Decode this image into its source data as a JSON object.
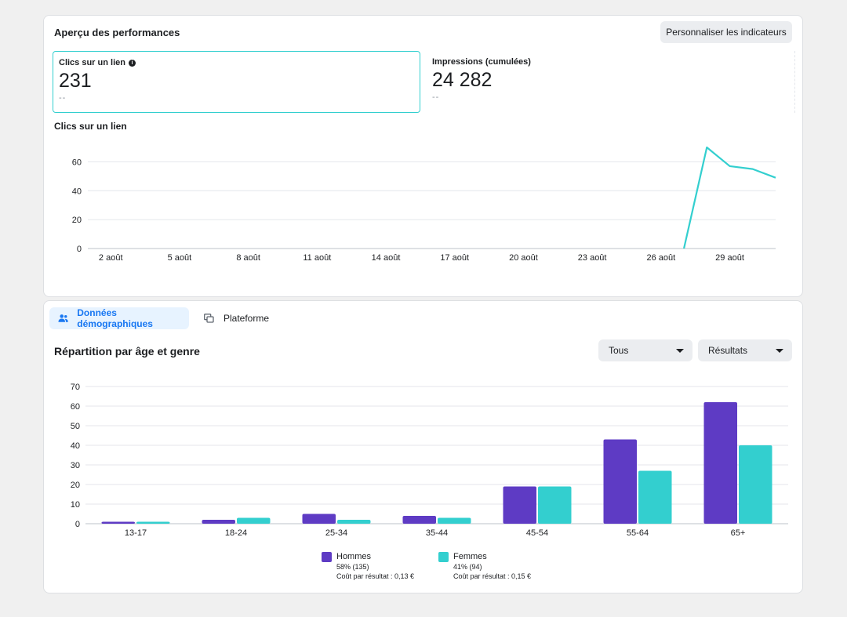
{
  "performance": {
    "title": "Aperçu des performances",
    "customize_button": "Personnaliser les indicateurs",
    "metrics": [
      {
        "label": "Clics sur un lien",
        "value": "231",
        "sub": "--"
      },
      {
        "label": "Impressions (cumulées)",
        "value": "24 282",
        "sub": "--"
      }
    ],
    "chart_title": "Clics sur un lien"
  },
  "demographics": {
    "tabs": [
      {
        "label": "Données démographiques",
        "active": true
      },
      {
        "label": "Plateforme",
        "active": false
      }
    ],
    "title": "Répartition par âge et genre",
    "filter_all": "Tous",
    "filter_results": "Résultats",
    "legend": [
      {
        "name": "Hommes",
        "share": "58% (135)",
        "cost": "Coût par résultat : 0,13 €",
        "color": "#5e3bc4"
      },
      {
        "name": "Femmes",
        "share": "41% (94)",
        "cost": "Coût par résultat : 0,15 €",
        "color": "#33cfcf"
      }
    ]
  },
  "chart_data": [
    {
      "type": "line",
      "title": "Clics sur un lien",
      "x_ticks": [
        "2 août",
        "5 août",
        "8 août",
        "11 août",
        "14 août",
        "17 août",
        "20 août",
        "23 août",
        "26 août",
        "29 août"
      ],
      "x_range": [
        "1 août",
        "31 août"
      ],
      "y_ticks": [
        0,
        20,
        40,
        60
      ],
      "ylim": [
        0,
        70
      ],
      "grid": true,
      "series": [
        {
          "color": "#33cfcf",
          "points": [
            {
              "x": "27 août",
              "y": 0
            },
            {
              "x": "28 août",
              "y": 70
            },
            {
              "x": "29 août",
              "y": 57
            },
            {
              "x": "30 août",
              "y": 55
            },
            {
              "x": "31 août",
              "y": 49
            }
          ]
        }
      ]
    },
    {
      "type": "bar",
      "categories": [
        "13-17",
        "18-24",
        "25-34",
        "35-44",
        "45-54",
        "55-64",
        "65+"
      ],
      "y_ticks": [
        0,
        10,
        20,
        30,
        40,
        50,
        60,
        70
      ],
      "ylim": [
        0,
        70
      ],
      "grid": true,
      "legend_position": "bottom",
      "series": [
        {
          "name": "Hommes",
          "color": "#5e3bc4",
          "values": [
            1,
            2,
            5,
            4,
            19,
            43,
            62
          ]
        },
        {
          "name": "Femmes",
          "color": "#33cfcf",
          "values": [
            1,
            3,
            2,
            3,
            19,
            27,
            40
          ]
        }
      ]
    }
  ]
}
